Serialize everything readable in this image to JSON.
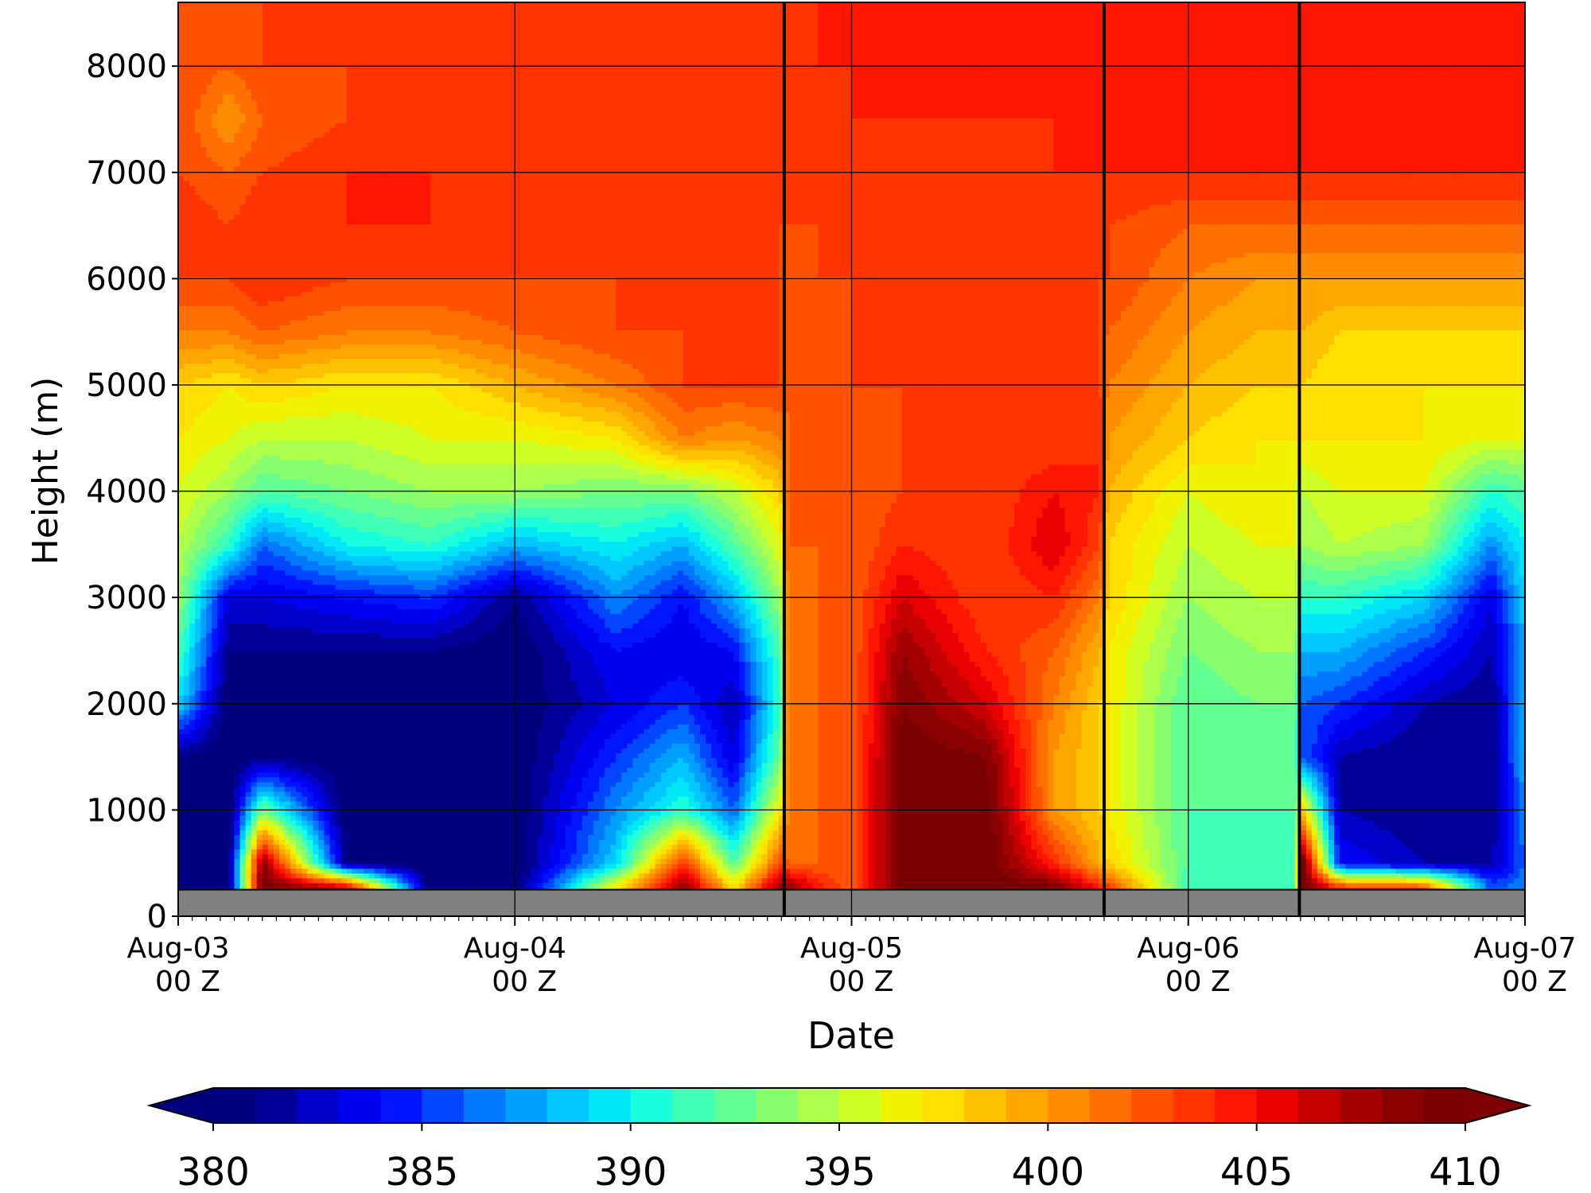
{
  "chart_data": {
    "type": "heatmap",
    "subtype": "filled-contour time-height cross section",
    "title": "",
    "xlabel": "Date",
    "ylabel": "Height (m)",
    "x_ticks": [
      {
        "line1": "Aug-03",
        "line2": "00 Z",
        "day": 0
      },
      {
        "line1": "Aug-04",
        "line2": "00 Z",
        "day": 1
      },
      {
        "line1": "Aug-05",
        "line2": "00 Z",
        "day": 2
      },
      {
        "line1": "Aug-06",
        "line2": "00 Z",
        "day": 3
      },
      {
        "line1": "Aug-07",
        "line2": "00 Z",
        "day": 4
      }
    ],
    "xlim_days": [
      0,
      4
    ],
    "ylim": [
      0,
      8600
    ],
    "y_ticks": [
      0,
      1000,
      2000,
      3000,
      4000,
      5000,
      6000,
      7000,
      8000
    ],
    "grid": true,
    "ground_height_m": 250,
    "ground_color": "#808080",
    "event_lines_days": [
      1.8,
      2.75,
      3.33
    ],
    "colorbar": {
      "orientation": "horizontal",
      "placement": "bottom",
      "extend": "both",
      "min": 380,
      "max": 410,
      "step": 1,
      "tick_labels": [
        "380",
        "385",
        "390",
        "395",
        "400",
        "405",
        "410"
      ],
      "colors": [
        "#00007f",
        "#000096",
        "#0000c8",
        "#0000f0",
        "#0014ff",
        "#0046ff",
        "#0078ff",
        "#00a0ff",
        "#00c8ff",
        "#00e8f8",
        "#1affde",
        "#40ffb8",
        "#64ff92",
        "#88ff6e",
        "#acff4a",
        "#d0ff26",
        "#f0f200",
        "#ffe000",
        "#ffc200",
        "#ffa600",
        "#ff8c00",
        "#ff7000",
        "#ff5200",
        "#ff3400",
        "#ff1600",
        "#e80000",
        "#c40000",
        "#a40000",
        "#8a0000",
        "#7a0000"
      ],
      "under_color": "#00007f",
      "over_color": "#7f0000"
    },
    "profiles": [
      {
        "t": 0.0,
        "z": [
          0,
          250,
          500,
          1000,
          1500,
          2000,
          2500,
          3000,
          3500,
          4000,
          4500,
          5000,
          5500,
          6000,
          6500,
          7000,
          7500,
          8000,
          8600
        ],
        "v": [
          380,
          380,
          380,
          380,
          381,
          389,
          392,
          394,
          395,
          396,
          397,
          398,
          401,
          403,
          404,
          403,
          403,
          403,
          403
        ]
      },
      {
        "t": 0.15,
        "z": [
          0,
          250,
          500,
          1000,
          1500,
          2000,
          2500,
          3000,
          3500,
          4000,
          4500,
          5000,
          5500,
          6000,
          6500,
          7000,
          7500,
          8000,
          8600
        ],
        "v": [
          380,
          380,
          380,
          380,
          380,
          380,
          381,
          383,
          391,
          394,
          396,
          397,
          401,
          403,
          403,
          402,
          400,
          402,
          403
        ]
      },
      {
        "t": 0.25,
        "z": [
          0,
          250,
          500,
          1000,
          1500,
          2000,
          2500,
          3000,
          3500,
          4000,
          4500,
          5000,
          5500,
          6000,
          6500,
          7000,
          7500,
          8000,
          8600
        ],
        "v": [
          410,
          410,
          409,
          393,
          381,
          380,
          381,
          383,
          386,
          392,
          395,
          398,
          402,
          404,
          404,
          403,
          402,
          403,
          403
        ]
      },
      {
        "t": 0.5,
        "z": [
          0,
          250,
          500,
          1000,
          1500,
          2000,
          2500,
          3000,
          3500,
          4000,
          4500,
          5000,
          5500,
          6000,
          6500,
          7000,
          7500,
          8000,
          8600
        ],
        "v": [
          410,
          409,
          381,
          380,
          380,
          380,
          381,
          384,
          390,
          393,
          395,
          397,
          401,
          403,
          404,
          404,
          403,
          403,
          403
        ]
      },
      {
        "t": 0.75,
        "z": [
          0,
          250,
          500,
          1000,
          1500,
          2000,
          2500,
          3000,
          3500,
          4000,
          4500,
          5000,
          5500,
          6000,
          6500,
          7000,
          7500,
          8000,
          8600
        ],
        "v": [
          387,
          380,
          380,
          380,
          380,
          380,
          381,
          385,
          391,
          394,
          396,
          397,
          401,
          403,
          404,
          404,
          403,
          403,
          403
        ]
      },
      {
        "t": 1.0,
        "z": [
          0,
          250,
          500,
          1000,
          1500,
          2000,
          2500,
          3000,
          3500,
          4000,
          4500,
          5000,
          5500,
          6000,
          6500,
          7000,
          7500,
          8000,
          8600
        ],
        "v": [
          381,
          380,
          380,
          380,
          380,
          380,
          380,
          381,
          388,
          394,
          396,
          399,
          402,
          403,
          403,
          403,
          403,
          403,
          403
        ]
      },
      {
        "t": 1.3,
        "z": [
          0,
          250,
          500,
          1000,
          1500,
          2000,
          2500,
          3000,
          3500,
          4000,
          4500,
          5000,
          5500,
          6000,
          6500,
          7000,
          7500,
          8000,
          8600
        ],
        "v": [
          398,
          398,
          389,
          387,
          385,
          383,
          384,
          387,
          390,
          393,
          397,
          401,
          403,
          403,
          403,
          403,
          403,
          403,
          403
        ]
      },
      {
        "t": 1.5,
        "z": [
          0,
          250,
          500,
          1000,
          1500,
          2000,
          2500,
          3000,
          3500,
          4000,
          4500,
          5000,
          5500,
          6000,
          6500,
          7000,
          7500,
          8000,
          8600
        ],
        "v": [
          410,
          409,
          404,
          391,
          388,
          385,
          383,
          384,
          388,
          393,
          401,
          403,
          403,
          403,
          403,
          403,
          403,
          403,
          403
        ]
      },
      {
        "t": 1.65,
        "z": [
          0,
          250,
          500,
          1000,
          1500,
          2000,
          2500,
          3000,
          3500,
          4000,
          4500,
          5000,
          5500,
          6000,
          6500,
          7000,
          7500,
          8000,
          8600
        ],
        "v": [
          403,
          398,
          392,
          386,
          383,
          382,
          384,
          388,
          392,
          395,
          400,
          403,
          403,
          403,
          403,
          403,
          403,
          403,
          403
        ]
      },
      {
        "t": 1.79,
        "z": [
          0,
          250,
          500,
          1000,
          1500,
          2000,
          2500,
          3000,
          3500,
          4000,
          4500,
          5000,
          5500,
          6000,
          6500,
          7000,
          7500,
          8000,
          8600
        ],
        "v": [
          410,
          409,
          403,
          397,
          393,
          391,
          392,
          394,
          396,
          398,
          401,
          403,
          403,
          403,
          403,
          403,
          403,
          403,
          403
        ]
      },
      {
        "t": 1.81,
        "z": [
          0,
          250,
          500,
          1000,
          1500,
          2000,
          2500,
          3000,
          3500,
          4000,
          4500,
          5000,
          5500,
          6000,
          6500,
          7000,
          7500,
          8000,
          8600
        ],
        "v": [
          410,
          409,
          402,
          401,
          401,
          401,
          401,
          401,
          402,
          402,
          402,
          402,
          402,
          402,
          403,
          403,
          403,
          403,
          403
        ]
      },
      {
        "t": 1.9,
        "z": [
          0,
          250,
          500,
          1000,
          1500,
          2000,
          2500,
          3000,
          3500,
          4000,
          4500,
          5000,
          5500,
          6000,
          6500,
          7000,
          7500,
          8000,
          8600
        ],
        "v": [
          409,
          405,
          402,
          402,
          402,
          402,
          402,
          402,
          402,
          402,
          402,
          402,
          402,
          403,
          403,
          403,
          403,
          404,
          404
        ]
      },
      {
        "t": 2.0,
        "z": [
          0,
          250,
          500,
          1000,
          1500,
          2000,
          2500,
          3000,
          3500,
          4000,
          4500,
          5000,
          5500,
          6000,
          6500,
          7000,
          7500,
          8000,
          8600
        ],
        "v": [
          402,
          402,
          402,
          402,
          402,
          402,
          402,
          402,
          402,
          402,
          402,
          403,
          403,
          403,
          403,
          403,
          404,
          404,
          405
        ]
      },
      {
        "t": 2.15,
        "z": [
          0,
          250,
          500,
          1000,
          1500,
          2000,
          2500,
          3000,
          3500,
          4000,
          4500,
          5000,
          5500,
          6000,
          6500,
          7000,
          7500,
          8000,
          8600
        ],
        "v": [
          410,
          410,
          410,
          410,
          410,
          409,
          408,
          406,
          404,
          403,
          403,
          403,
          403,
          403,
          403,
          403,
          404,
          404,
          405
        ]
      },
      {
        "t": 2.4,
        "z": [
          0,
          250,
          500,
          1000,
          1500,
          2000,
          2500,
          3000,
          3500,
          4000,
          4500,
          5000,
          5500,
          6000,
          6500,
          7000,
          7500,
          8000,
          8600
        ],
        "v": [
          410,
          410,
          410,
          410,
          409,
          406,
          404,
          403,
          403,
          403,
          403,
          403,
          403,
          403,
          403,
          403,
          404,
          404,
          404
        ]
      },
      {
        "t": 2.6,
        "z": [
          0,
          250,
          500,
          1000,
          1500,
          2000,
          2500,
          3000,
          3500,
          4000,
          4500,
          5000,
          5500,
          6000,
          6500,
          7000,
          7500,
          8000,
          8600
        ],
        "v": [
          410,
          410,
          404,
          400,
          400,
          401,
          402,
          404,
          406,
          405,
          403,
          403,
          403,
          403,
          403,
          404,
          404,
          404,
          404
        ]
      },
      {
        "t": 2.74,
        "z": [
          0,
          250,
          500,
          1000,
          1500,
          2000,
          2500,
          3000,
          3500,
          4000,
          4500,
          5000,
          5500,
          6000,
          6500,
          7000,
          7500,
          8000,
          8600
        ],
        "v": [
          410,
          405,
          399,
          398,
          398,
          398,
          399,
          401,
          403,
          404,
          404,
          403,
          403,
          403,
          403,
          404,
          404,
          404,
          404
        ]
      },
      {
        "t": 2.76,
        "z": [
          0,
          250,
          500,
          1000,
          1500,
          2000,
          2500,
          3000,
          3500,
          4000,
          4500,
          5000,
          5500,
          6000,
          6500,
          7000,
          7500,
          8000,
          8600
        ],
        "v": [
          410,
          404,
          398,
          397,
          397,
          397,
          397,
          398,
          398,
          399,
          400,
          401,
          402,
          403,
          403,
          404,
          404,
          404,
          404
        ]
      },
      {
        "t": 3.0,
        "z": [
          0,
          250,
          500,
          1000,
          1500,
          2000,
          2500,
          3000,
          3500,
          4000,
          4500,
          5000,
          5500,
          6000,
          6500,
          7000,
          7500,
          8000,
          8600
        ],
        "v": [
          391,
          391,
          392,
          392,
          392,
          392,
          393,
          394,
          395,
          396,
          398,
          399,
          400,
          401,
          402,
          404,
          404,
          404,
          404
        ]
      },
      {
        "t": 3.2,
        "z": [
          0,
          250,
          500,
          1000,
          1500,
          2000,
          2500,
          3000,
          3500,
          4000,
          4500,
          5000,
          5500,
          6000,
          6500,
          7000,
          7500,
          8000,
          8600
        ],
        "v": [
          391,
          391,
          391,
          392,
          392,
          393,
          394,
          395,
          396,
          397,
          397,
          398,
          399,
          400,
          402,
          404,
          404,
          404,
          404
        ]
      },
      {
        "t": 3.32,
        "z": [
          0,
          250,
          500,
          1000,
          1500,
          2000,
          2500,
          3000,
          3500,
          4000,
          4500,
          5000,
          5500,
          6000,
          6500,
          7000,
          7500,
          8000,
          8600
        ],
        "v": [
          392,
          392,
          392,
          392,
          392,
          393,
          394,
          395,
          396,
          396,
          397,
          398,
          399,
          400,
          402,
          404,
          404,
          404,
          404
        ]
      },
      {
        "t": 3.34,
        "z": [
          0,
          250,
          500,
          1000,
          1500,
          2000,
          2500,
          3000,
          3500,
          4000,
          4500,
          5000,
          5500,
          6000,
          6500,
          7000,
          7500,
          8000,
          8600
        ],
        "v": [
          410,
          410,
          410,
          398,
          386,
          386,
          388,
          391,
          394,
          395,
          397,
          398,
          399,
          400,
          402,
          404,
          404,
          404,
          404
        ]
      },
      {
        "t": 3.45,
        "z": [
          0,
          250,
          500,
          1000,
          1500,
          2000,
          2500,
          3000,
          3500,
          4000,
          4500,
          5000,
          5500,
          6000,
          6500,
          7000,
          7500,
          8000,
          8600
        ],
        "v": [
          410,
          406,
          384,
          382,
          382,
          385,
          388,
          391,
          395,
          396,
          397,
          397,
          398,
          400,
          402,
          404,
          404,
          404,
          404
        ]
      },
      {
        "t": 3.7,
        "z": [
          0,
          250,
          500,
          1000,
          1500,
          2000,
          2500,
          3000,
          3500,
          4000,
          4500,
          5000,
          5500,
          6000,
          6500,
          7000,
          7500,
          8000,
          8600
        ],
        "v": [
          410,
          405,
          382,
          381,
          381,
          382,
          385,
          389,
          394,
          396,
          397,
          397,
          398,
          400,
          402,
          404,
          404,
          404,
          404
        ]
      },
      {
        "t": 3.9,
        "z": [
          0,
          250,
          500,
          1000,
          1500,
          2000,
          2500,
          3000,
          3500,
          4000,
          4500,
          5000,
          5500,
          6000,
          6500,
          7000,
          7500,
          8000,
          8600
        ],
        "v": [
          392,
          386,
          382,
          381,
          381,
          381,
          382,
          383,
          387,
          391,
          396,
          397,
          398,
          400,
          402,
          404,
          404,
          404,
          404
        ]
      },
      {
        "t": 4.0,
        "z": [
          0,
          250,
          500,
          1000,
          1500,
          2000,
          2500,
          3000,
          3500,
          4000,
          4500,
          5000,
          5500,
          6000,
          6500,
          7000,
          7500,
          8000,
          8600
        ],
        "v": [
          387,
          387,
          386,
          387,
          388,
          388,
          388,
          389,
          390,
          392,
          396,
          397,
          398,
          400,
          402,
          404,
          404,
          404,
          404
        ]
      }
    ]
  }
}
